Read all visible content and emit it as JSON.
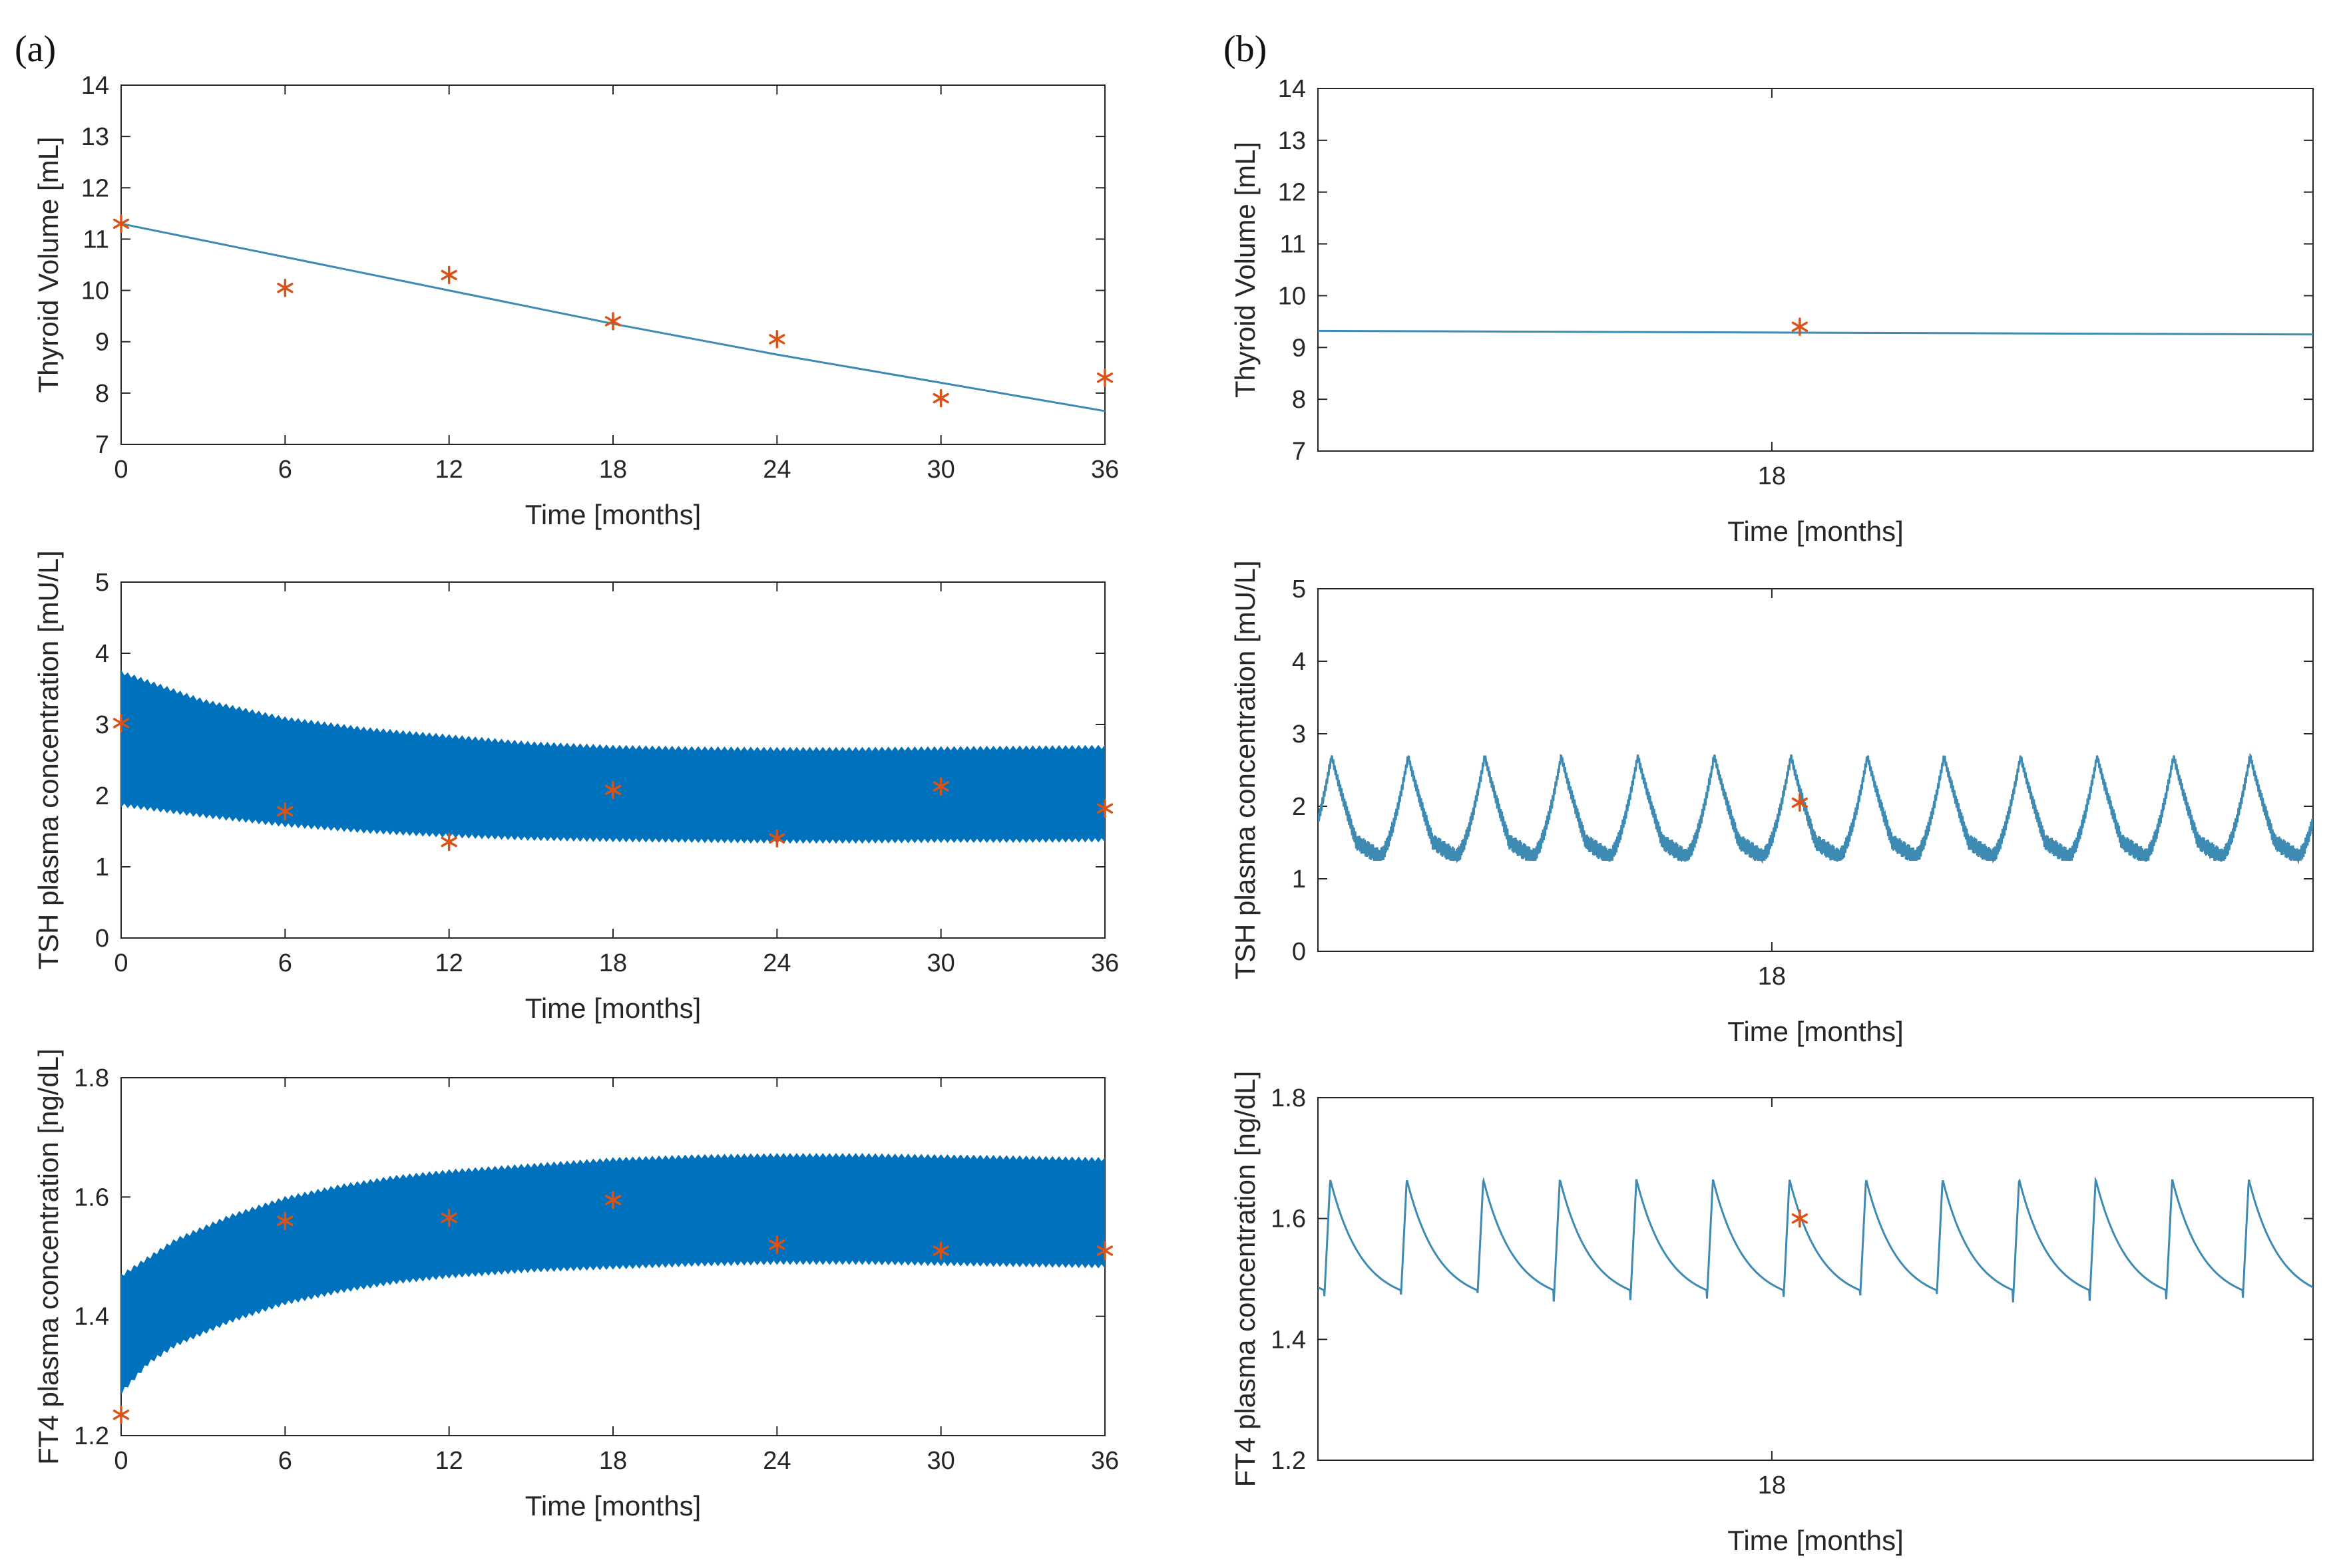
{
  "panel_labels": [
    "(a)",
    "(b)"
  ],
  "colors": {
    "model_dense": "#0072BD",
    "model_line": "#3d8ab3",
    "observed": "#D95319",
    "axis": "#262626"
  },
  "chart_data": [
    {
      "id": "a1",
      "type": "line",
      "panel": "(a)",
      "xlabel": "Time [months]",
      "ylabel": "Thyroid Volume [mL]",
      "xlim": [
        0,
        36
      ],
      "ylim": [
        7,
        14
      ],
      "xticks": [
        0,
        6,
        12,
        18,
        24,
        30,
        36
      ],
      "yticks": [
        7,
        8,
        9,
        10,
        11,
        12,
        13,
        14
      ],
      "series": [
        {
          "name": "model",
          "style": "line",
          "x": [
            0,
            6,
            12,
            18,
            24,
            30,
            36
          ],
          "values": [
            11.3,
            10.65,
            10.0,
            9.35,
            8.75,
            8.2,
            7.65
          ]
        },
        {
          "name": "observed",
          "style": "marker",
          "x": [
            0,
            6,
            12,
            18,
            24,
            30,
            36
          ],
          "values": [
            11.3,
            10.05,
            10.3,
            9.4,
            9.05,
            7.9,
            8.3
          ]
        }
      ]
    },
    {
      "id": "a2",
      "type": "area",
      "panel": "(a)",
      "xlabel": "Time [months]",
      "ylabel": "TSH plasma concentration [mU/L]",
      "xlim": [
        0,
        36
      ],
      "ylim": [
        0,
        5
      ],
      "xticks": [
        0,
        6,
        12,
        18,
        24,
        30,
        36
      ],
      "yticks": [
        0,
        1,
        2,
        3,
        4,
        5
      ],
      "series": [
        {
          "name": "model upper envelope",
          "style": "band-upper",
          "x": [
            0,
            3,
            6,
            9,
            12,
            15,
            18,
            21,
            24,
            27,
            30,
            33,
            36
          ],
          "values": [
            3.75,
            3.35,
            3.1,
            2.95,
            2.85,
            2.75,
            2.7,
            2.68,
            2.67,
            2.67,
            2.68,
            2.69,
            2.7
          ]
        },
        {
          "name": "model lower envelope",
          "style": "band-lower",
          "x": [
            0,
            3,
            6,
            9,
            12,
            15,
            18,
            21,
            24,
            27,
            30,
            33,
            36
          ],
          "values": [
            1.85,
            1.7,
            1.57,
            1.48,
            1.42,
            1.38,
            1.36,
            1.35,
            1.34,
            1.34,
            1.35,
            1.35,
            1.36
          ]
        },
        {
          "name": "observed",
          "style": "marker",
          "x": [
            0,
            6,
            12,
            18,
            24,
            30,
            36
          ],
          "values": [
            3.02,
            1.78,
            1.35,
            2.08,
            1.4,
            2.13,
            1.82
          ]
        }
      ]
    },
    {
      "id": "a3",
      "type": "area",
      "panel": "(a)",
      "xlabel": "Time [months]",
      "ylabel": "FT4 plasma concentration [ng/dL]",
      "xlim": [
        0,
        36
      ],
      "ylim": [
        1.2,
        1.8
      ],
      "xticks": [
        0,
        6,
        12,
        18,
        24,
        30,
        36
      ],
      "yticks": [
        1.2,
        1.4,
        1.6,
        1.8
      ],
      "series": [
        {
          "name": "model upper envelope",
          "style": "band-upper",
          "x": [
            0,
            1,
            2,
            3,
            4,
            6,
            8,
            10,
            12,
            15,
            18,
            21,
            24,
            27,
            30,
            33,
            36
          ],
          "values": [
            1.47,
            1.5,
            1.53,
            1.55,
            1.57,
            1.6,
            1.62,
            1.635,
            1.645,
            1.655,
            1.665,
            1.67,
            1.672,
            1.672,
            1.67,
            1.668,
            1.665
          ]
        },
        {
          "name": "model lower envelope",
          "style": "band-lower",
          "x": [
            0,
            1,
            2,
            3,
            4,
            6,
            8,
            10,
            12,
            15,
            18,
            21,
            24,
            27,
            30,
            33,
            36
          ],
          "values": [
            1.27,
            1.32,
            1.35,
            1.37,
            1.39,
            1.42,
            1.44,
            1.455,
            1.465,
            1.475,
            1.48,
            1.485,
            1.488,
            1.488,
            1.486,
            1.484,
            1.482
          ]
        },
        {
          "name": "observed",
          "style": "marker",
          "x": [
            0,
            6,
            12,
            18,
            24,
            30,
            36
          ],
          "values": [
            1.235,
            1.56,
            1.565,
            1.595,
            1.52,
            1.51,
            1.51
          ]
        }
      ]
    },
    {
      "id": "b1",
      "type": "line",
      "panel": "(b)",
      "xlabel": "Time [months]",
      "ylabel": "Thyroid Volume [mL]",
      "xlim": [
        16.7,
        19.55
      ],
      "ylim": [
        7,
        14
      ],
      "xticks": [
        18
      ],
      "yticks": [
        7,
        8,
        9,
        10,
        11,
        12,
        13,
        14
      ],
      "series": [
        {
          "name": "model",
          "style": "line",
          "x": [
            16.7,
            19.55
          ],
          "values": [
            9.32,
            9.25
          ]
        },
        {
          "name": "observed",
          "style": "marker",
          "x": [
            18.08
          ],
          "values": [
            9.4
          ]
        }
      ]
    },
    {
      "id": "b2",
      "type": "line",
      "panel": "(b)",
      "xlabel": "Time [months]",
      "ylabel": "TSH plasma concentration [mU/L]",
      "xlim": [
        16.7,
        19.55
      ],
      "ylim": [
        0,
        5
      ],
      "xticks": [
        18
      ],
      "yticks": [
        0,
        1,
        2,
        3,
        4,
        5
      ],
      "series": [
        {
          "name": "model",
          "style": "sawtooth",
          "x": [
            16.7,
            19.55
          ],
          "values": [
            1.3,
            2.7
          ],
          "cycles": 13
        },
        {
          "name": "observed",
          "style": "marker",
          "x": [
            18.08
          ],
          "values": [
            2.05
          ]
        }
      ]
    },
    {
      "id": "b3",
      "type": "line",
      "panel": "(b)",
      "xlabel": "Time [months]",
      "ylabel": "FT4 plasma concentration [ng/dL]",
      "xlim": [
        16.7,
        19.55
      ],
      "ylim": [
        1.2,
        1.8
      ],
      "xticks": [
        18
      ],
      "yticks": [
        1.2,
        1.4,
        1.6,
        1.8
      ],
      "series": [
        {
          "name": "model",
          "style": "decay",
          "x": [
            16.7,
            19.55
          ],
          "values": [
            1.46,
            1.665
          ],
          "cycles": 13
        },
        {
          "name": "observed",
          "style": "marker",
          "x": [
            18.08
          ],
          "values": [
            1.6
          ]
        }
      ]
    }
  ]
}
